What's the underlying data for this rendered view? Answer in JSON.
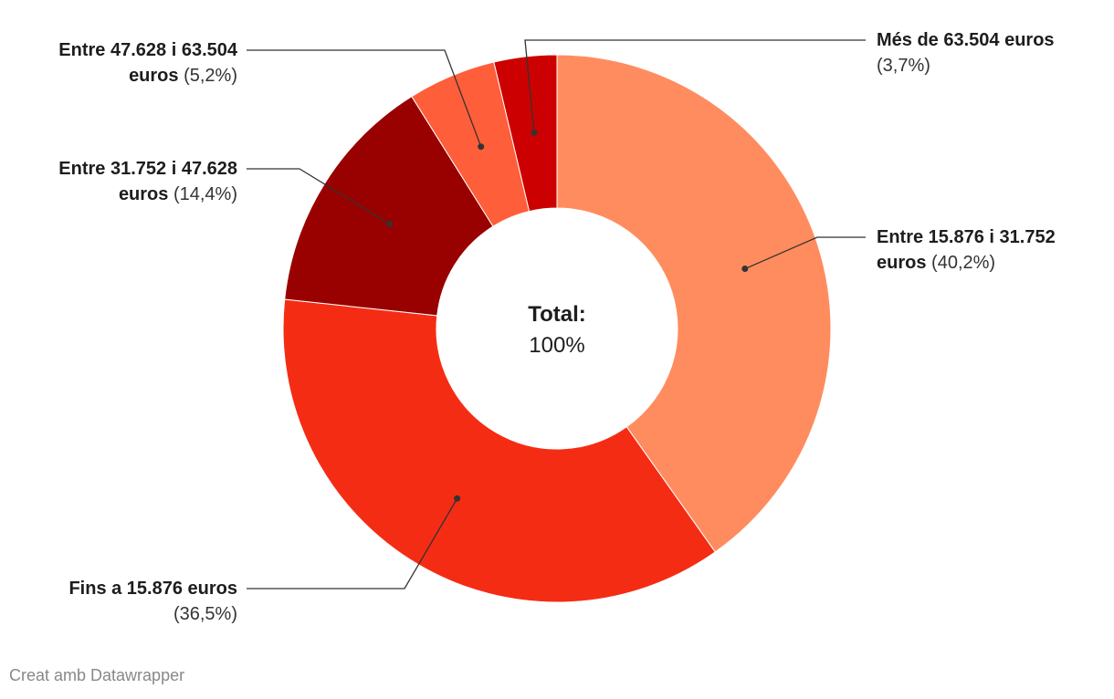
{
  "chart_data": {
    "type": "donut",
    "categories": [
      "Entre 15.876 i 31.752 euros",
      "Fins a 15.876 euros",
      "Entre 31.752 i 47.628 euros",
      "Entre 47.628 i 63.504 euros",
      "Més de 63.504 euros"
    ],
    "values": [
      40.2,
      36.5,
      14.4,
      5.2,
      3.7
    ],
    "value_labels": [
      "(40,2%)",
      "(36,5%)",
      "(14,4%)",
      "(5,2%)",
      "(3,7%)"
    ],
    "colors": [
      "#ff8c5f",
      "#f52c14",
      "#990000",
      "#ff5e3a",
      "#cc0000"
    ],
    "center_title": "Total:",
    "total": 100,
    "total_label": "100%",
    "footer": "Creat amb Datawrapper"
  }
}
